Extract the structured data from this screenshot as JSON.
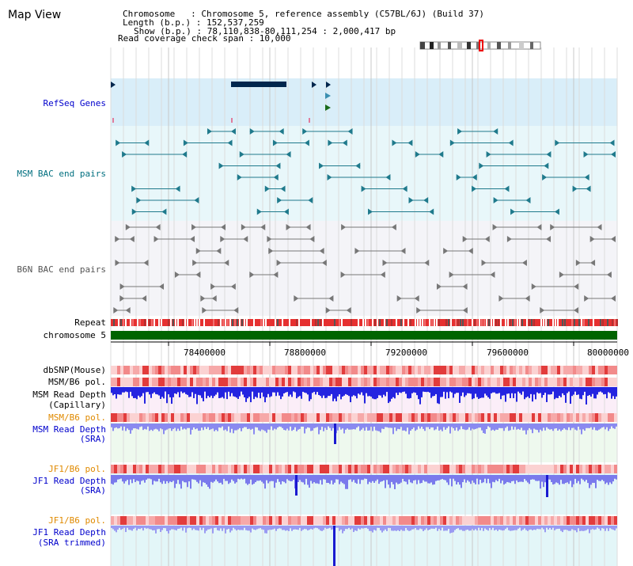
{
  "page_title": "Map View",
  "info": {
    "chromosome_line": "Chromosome   : Chromosome 5, reference assembly (C57BL/6J) (Build 37)",
    "length_line": "Length (b.p.) : 152,537,259",
    "show_line": "Show (b.p.) : 78,110,838-80,111,254 : 2,000,417 bp",
    "coverage_line": "Read coverage check span : 10,000"
  },
  "tracks": {
    "refseq_genes": "RefSeq Genes",
    "msm_bac": "MSM BAC end pairs",
    "b6n_bac": "B6N BAC end pairs",
    "repeat": "Repeat",
    "chromosome": "chromosome 5",
    "dbsnp": "dbSNP(Mouse)",
    "msm_b6_pol_1": "MSM/B6 pol.",
    "msm_depth_cap_1": "MSM Read Depth",
    "msm_depth_cap_2": "(Capillary)",
    "msm_b6_pol_2": "MSM/B6 pol.",
    "msm_depth_sra_1": "MSM Read Depth",
    "msm_depth_sra_2": "(SRA)",
    "jf1_b6_pol_1": "JF1/B6 pol.",
    "jf1_depth_sra_1": "JF1 Read Depth",
    "jf1_depth_sra_2": "(SRA)",
    "jf1_b6_pol_2": "JF1/B6 pol.",
    "jf1_depth_trim_1": "JF1 Read Depth",
    "jf1_depth_trim_2": "(SRA trimmed)"
  },
  "axis": {
    "ticks": [
      "78400000",
      "78800000",
      "79200000",
      "79600000",
      "80000000"
    ],
    "tick_values": [
      78400000,
      78800000,
      79200000,
      79600000,
      80000000
    ],
    "start_bp": 78110838,
    "end_bp": 80111254
  },
  "colors": {
    "title": "#000000",
    "blue_label": "#0000cc",
    "teal_label": "#006f7f",
    "gray_label": "#555555",
    "orange_label": "#e08a00",
    "gene": "#00264d",
    "msm_bac": "#1f7a8c",
    "b6n_bac": "#777777",
    "chromosome": "#006400",
    "depth": "#2424e0",
    "depth_light": "#8a8af0"
  }
}
